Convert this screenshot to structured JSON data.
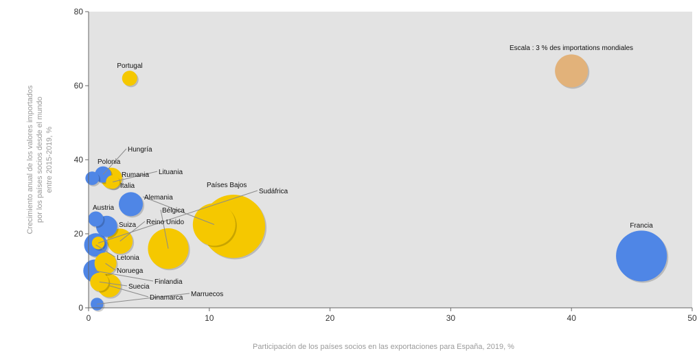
{
  "chart_data": {
    "type": "scatter",
    "xlabel": "Participación de los países socios en las exportaciones para España, 2019, %",
    "ylabel_lines": [
      "Crecimiento anual de los valores importados",
      "por los países socios desde el mundo",
      "entre 2015-2019, %"
    ],
    "xlim": [
      0,
      50
    ],
    "ylim": [
      0,
      80
    ],
    "x_ticks": [
      0,
      10,
      20,
      30,
      40,
      50
    ],
    "y_ticks": [
      0,
      20,
      40,
      60,
      80
    ],
    "grid": false,
    "colors": {
      "blue": "#4f86e6",
      "yellow": "#f5c800",
      "scale": "#e2b27a",
      "plot_bg": "#e3e3e3"
    },
    "scale_note": "Escala : 3 % des importations mondiales",
    "scale_bubble": {
      "x": 40.0,
      "y": 64.0,
      "importance": 3.0
    },
    "points": [
      {
        "name": "Portugal",
        "x": 3.4,
        "y": 62.0,
        "color": "yellow",
        "importance": 0.3
      },
      {
        "name": "Hungría",
        "x": 1.2,
        "y": 36.0,
        "color": "blue",
        "importance": 0.4
      },
      {
        "name": "Polonia",
        "x": 0.3,
        "y": 35.0,
        "color": "blue",
        "importance": 0.2
      },
      {
        "name": "Rumania",
        "x": 1.9,
        "y": 35.0,
        "color": "yellow",
        "importance": 0.9
      },
      {
        "name": "Lituania",
        "x": 2.0,
        "y": 34.0,
        "color": "yellow",
        "importance": 0.2
      },
      {
        "name": "Italia",
        "x": 3.5,
        "y": 28.0,
        "color": "blue",
        "importance": 1.3
      },
      {
        "name": "Austria",
        "x": 0.6,
        "y": 24.0,
        "color": "blue",
        "importance": 0.3
      },
      {
        "name": "Alemania",
        "x": 10.4,
        "y": 22.5,
        "color": "yellow",
        "importance": 5.6
      },
      {
        "name": "Bélgica",
        "x": 6.6,
        "y": 16.0,
        "color": "yellow",
        "importance": 5.0
      },
      {
        "name": "Suiza",
        "x": 1.5,
        "y": 22.0,
        "color": "blue",
        "importance": 0.9
      },
      {
        "name": "Reino Unido",
        "x": 2.6,
        "y": 18.0,
        "color": "yellow",
        "importance": 1.5
      },
      {
        "name": "Países Bajos",
        "x": 12.0,
        "y": 22.0,
        "color": "yellow",
        "importance": 14.0
      },
      {
        "name": "Sudáfrica",
        "x": 0.8,
        "y": 17.5,
        "color": "yellow",
        "importance": 0.15
      },
      {
        "name": "Francia",
        "x": 45.8,
        "y": 14.0,
        "color": "blue",
        "importance": 8.5
      },
      {
        "name": "Letonia",
        "x": 0.6,
        "y": 17.0,
        "color": "blue",
        "importance": 1.2
      },
      {
        "name": "Noruega",
        "x": 1.4,
        "y": 12.0,
        "color": "yellow",
        "importance": 1.0
      },
      {
        "name": "Finlandia",
        "x": 0.5,
        "y": 10.0,
        "color": "blue",
        "importance": 1.1
      },
      {
        "name": "Suecia",
        "x": 0.9,
        "y": 7.0,
        "color": "yellow",
        "importance": 0.6
      },
      {
        "name": "Dinamarca",
        "x": 1.7,
        "y": 6.0,
        "color": "yellow",
        "importance": 1.2
      },
      {
        "name": "Marruecos",
        "x": 0.7,
        "y": 1.0,
        "color": "blue",
        "importance": 0.15
      }
    ]
  }
}
